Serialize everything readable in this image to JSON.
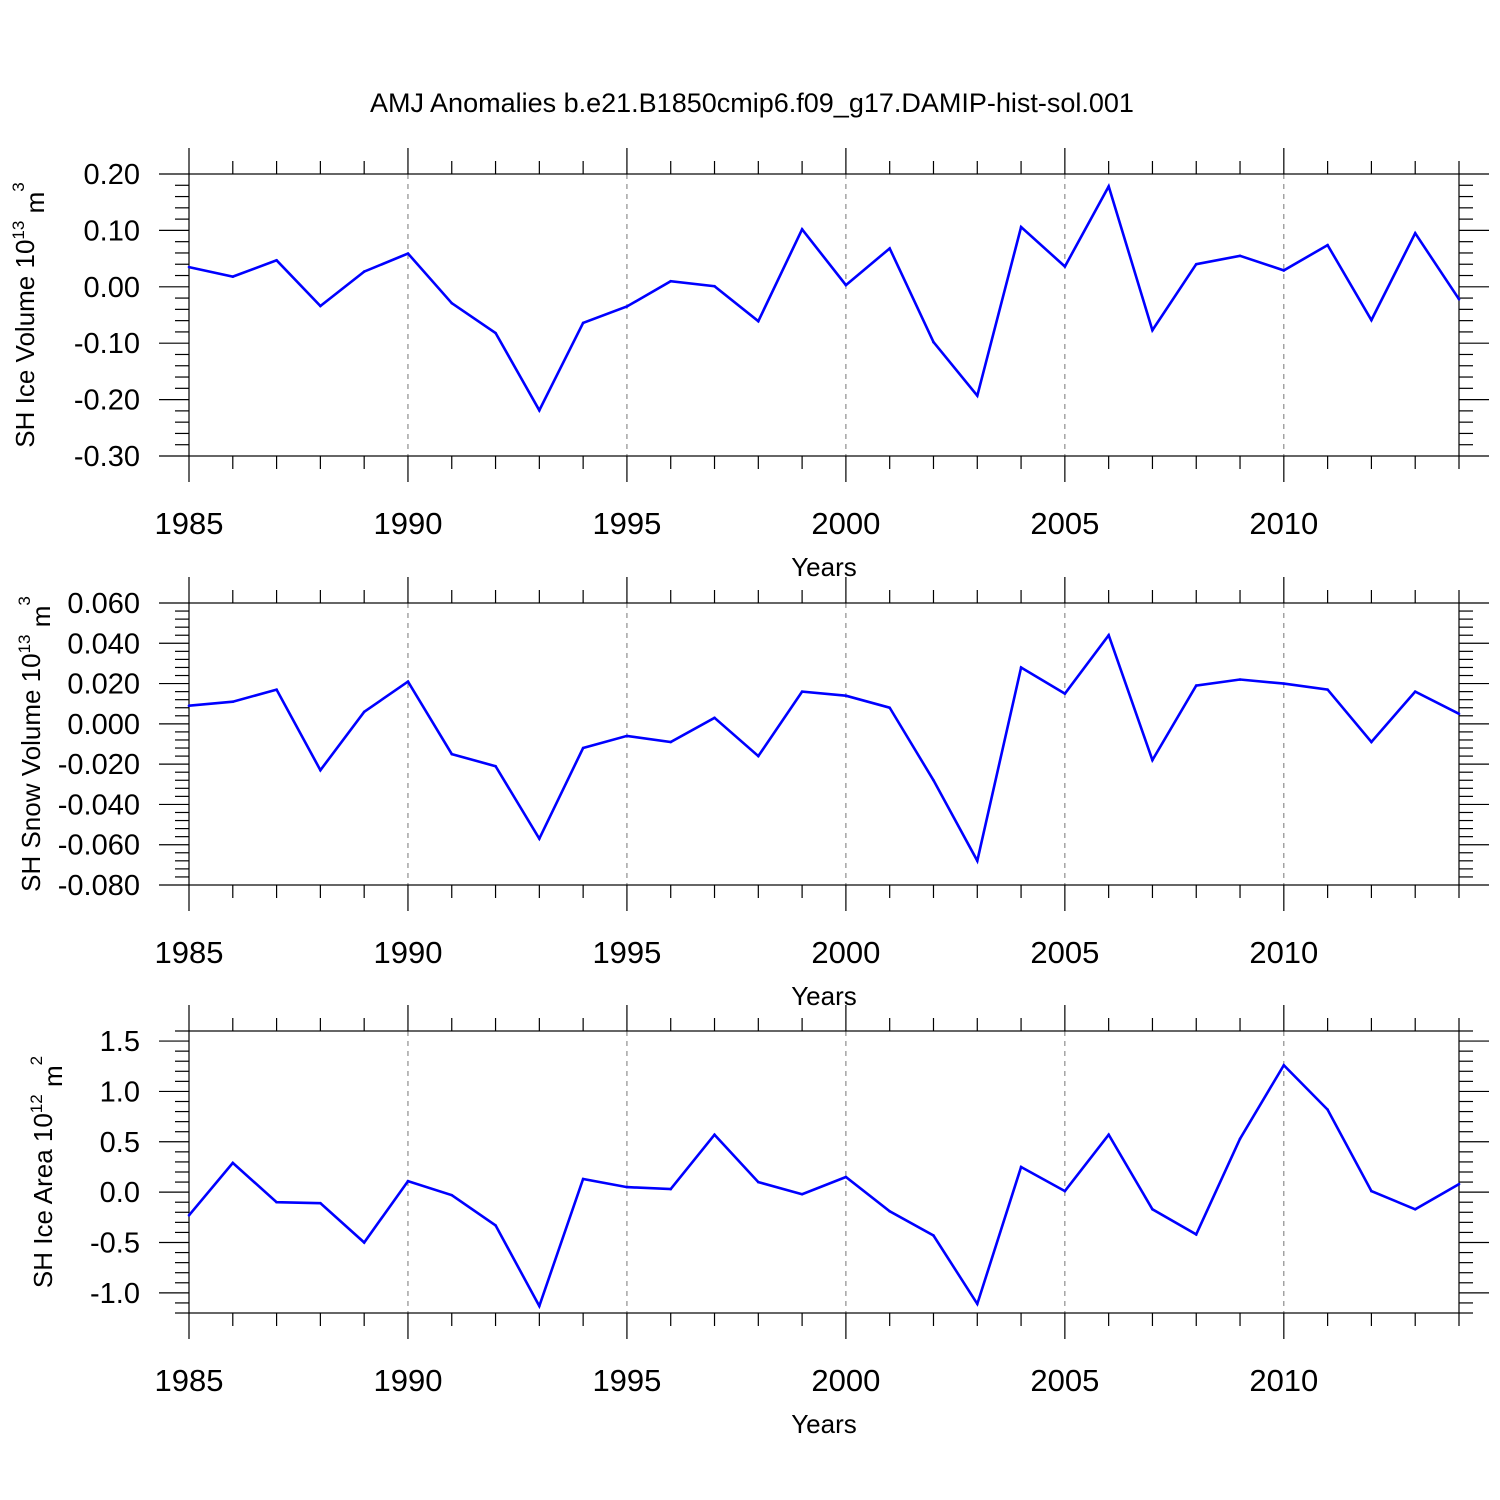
{
  "title": "AMJ Anomalies b.e21.B1850cmip6.f09_g17.DAMIP-hist-sol.001",
  "line_color": "#0000ff",
  "grid_color": "#777777",
  "chart_data": [
    {
      "type": "line",
      "ylabel": {
        "main": "SH Ice Volume 10",
        "sup": "13",
        "unit": " m",
        "unit_sup": "3"
      },
      "xlabel": "Years",
      "xlim": [
        1985,
        2014
      ],
      "ylim": [
        -0.3,
        0.2
      ],
      "xticks": [
        1985,
        1990,
        1995,
        2000,
        2005,
        2010
      ],
      "yticks": [
        "-0.30",
        "-0.20",
        "-0.10",
        "0.00",
        "0.10",
        "0.20"
      ],
      "grid": "vertical dashed at labeled x ticks",
      "x": [
        1985,
        1986,
        1987,
        1988,
        1989,
        1990,
        1991,
        1992,
        1993,
        1994,
        1995,
        1996,
        1997,
        1998,
        1999,
        2000,
        2001,
        2002,
        2003,
        2004,
        2005,
        2006,
        2007,
        2008,
        2009,
        2010,
        2011,
        2012,
        2013,
        2014
      ],
      "values": [
        0.035,
        0.018,
        0.047,
        -0.034,
        0.027,
        0.059,
        -0.029,
        -0.082,
        -0.219,
        -0.064,
        -0.035,
        0.01,
        0.001,
        -0.061,
        0.102,
        0.003,
        0.068,
        -0.098,
        -0.193,
        0.106,
        0.036,
        0.178,
        -0.077,
        0.04,
        0.055,
        0.029,
        0.074,
        -0.059,
        0.095,
        -0.022
      ]
    },
    {
      "type": "line",
      "ylabel": {
        "main": "SH Snow Volume 10",
        "sup": "13",
        "unit": " m",
        "unit_sup": "3"
      },
      "xlabel": "Years",
      "xlim": [
        1985,
        2014
      ],
      "ylim": [
        -0.08,
        0.06
      ],
      "xticks": [
        1985,
        1990,
        1995,
        2000,
        2005,
        2010
      ],
      "yticks": [
        "-0.080",
        "-0.060",
        "-0.040",
        "-0.020",
        "0.000",
        "0.020",
        "0.040",
        "0.060"
      ],
      "grid": "vertical dashed at labeled x ticks",
      "x": [
        1985,
        1986,
        1987,
        1988,
        1989,
        1990,
        1991,
        1992,
        1993,
        1994,
        1995,
        1996,
        1997,
        1998,
        1999,
        2000,
        2001,
        2002,
        2003,
        2004,
        2005,
        2006,
        2007,
        2008,
        2009,
        2010,
        2011,
        2012,
        2013,
        2014
      ],
      "values": [
        0.009,
        0.011,
        0.017,
        -0.023,
        0.006,
        0.021,
        -0.015,
        -0.021,
        -0.057,
        -0.012,
        -0.006,
        -0.009,
        0.003,
        -0.016,
        0.016,
        0.014,
        0.008,
        -0.028,
        -0.068,
        0.028,
        0.015,
        0.044,
        -0.018,
        0.019,
        0.022,
        0.02,
        0.017,
        -0.009,
        0.016,
        0.005
      ]
    },
    {
      "type": "line",
      "ylabel": {
        "main": "SH Ice Area 10",
        "sup": "12",
        "unit": " m",
        "unit_sup": "2"
      },
      "xlabel": "Years",
      "xlim": [
        1985,
        2014
      ],
      "ylim": [
        -1.2,
        1.6
      ],
      "xticks": [
        1985,
        1990,
        1995,
        2000,
        2005,
        2010
      ],
      "yticks": [
        "-1.0",
        "-0.5",
        "0.0",
        "0.5",
        "1.0",
        "1.5"
      ],
      "grid": "vertical dashed at labeled x ticks",
      "x": [
        1985,
        1986,
        1987,
        1988,
        1989,
        1990,
        1991,
        1992,
        1993,
        1994,
        1995,
        1996,
        1997,
        1998,
        1999,
        2000,
        2001,
        2002,
        2003,
        2004,
        2005,
        2006,
        2007,
        2008,
        2009,
        2010,
        2011,
        2012,
        2013,
        2014
      ],
      "values": [
        -0.23,
        0.29,
        -0.1,
        -0.11,
        -0.5,
        0.11,
        -0.03,
        -0.33,
        -1.13,
        0.13,
        0.05,
        0.03,
        0.57,
        0.1,
        -0.02,
        0.15,
        -0.19,
        -0.43,
        -1.11,
        0.25,
        0.01,
        0.57,
        -0.17,
        -0.42,
        0.53,
        1.26,
        0.82,
        0.01,
        -0.17,
        0.08
      ]
    }
  ]
}
